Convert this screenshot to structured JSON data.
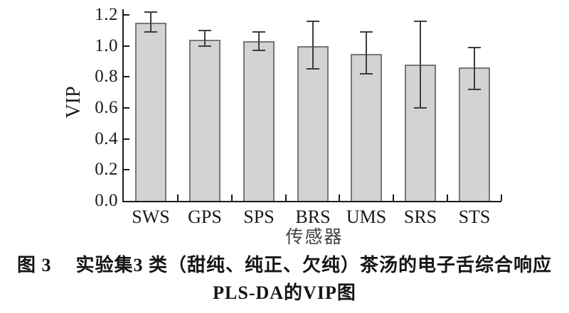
{
  "figure": {
    "y_axis": {
      "label": "VIP",
      "ticks": [
        "0.0",
        "0.2",
        "0.4",
        "0.6",
        "0.8",
        "1.0",
        "1.2"
      ]
    },
    "x_axis": {
      "label": "传感器"
    },
    "caption": {
      "prefix": "图 3",
      "line1": "实验集3 类（甜纯、纯正、欠纯）茶汤的电子舌综合响应",
      "line2": "PLS-DA的VIP图"
    }
  },
  "chart_data": {
    "type": "bar",
    "title": "",
    "xlabel": "传感器",
    "ylabel": "VIP",
    "ylim": [
      0,
      1.2
    ],
    "ytick_step": 0.2,
    "yticks": [
      "0.0",
      "0.2",
      "0.4",
      "0.6",
      "0.8",
      "1.0",
      "1.2"
    ],
    "categories": [
      "SWS",
      "GPS",
      "SPS",
      "BRS",
      "UMS",
      "SRS",
      "STS"
    ],
    "values": [
      1.15,
      1.04,
      1.03,
      1.0,
      0.95,
      0.88,
      0.86
    ],
    "errors_up": [
      0.07,
      0.06,
      0.06,
      0.16,
      0.14,
      0.28,
      0.13
    ],
    "errors_down": [
      0.06,
      0.04,
      0.06,
      0.15,
      0.13,
      0.28,
      0.14
    ],
    "grid": false,
    "legend": null,
    "colors": {
      "bar_fill": "#d3d3d3",
      "bar_border": "#777777",
      "error_bar": "#3d3d3d",
      "axis": "#1a1a1a",
      "text": "#1a1a1a",
      "background": "#ffffff"
    }
  }
}
